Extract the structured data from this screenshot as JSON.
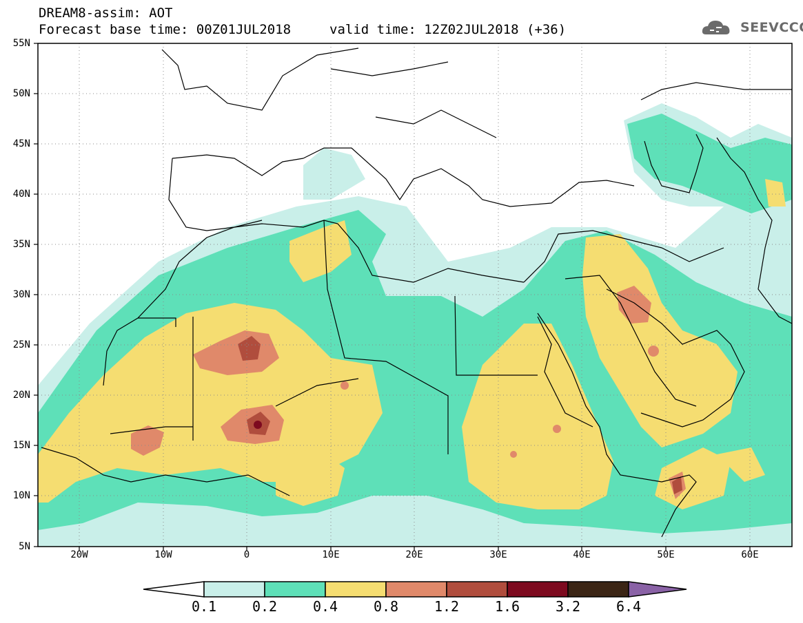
{
  "header": {
    "line1": "DREAM8-assim: AOT",
    "line2": "Forecast base time: 00Z01JUL2018",
    "line3": "valid time: 12Z02JUL2018 (+36)"
  },
  "logo": {
    "text": "SEEVCCC",
    "icon": "cloud-icon"
  },
  "map": {
    "lat_labels": [
      "55N",
      "50N",
      "45N",
      "40N",
      "35N",
      "30N",
      "25N",
      "20N",
      "15N",
      "10N",
      "5N"
    ],
    "lon_labels": [
      "20W",
      "10W",
      "0",
      "10E",
      "20E",
      "30E",
      "40E",
      "50E",
      "60E"
    ],
    "lat_range": [
      5,
      55
    ],
    "lon_range": [
      -25,
      65
    ]
  },
  "legend": {
    "labels": [
      "0.1",
      "0.2",
      "0.4",
      "0.8",
      "1.2",
      "1.6",
      "3.2",
      "6.4"
    ],
    "colors": [
      "#ffffff",
      "#c9efe9",
      "#5ee0b8",
      "#f5dd71",
      "#e0896a",
      "#b04d3d",
      "#7d0a1f",
      "#3b2515",
      "#8a62a6"
    ]
  }
}
